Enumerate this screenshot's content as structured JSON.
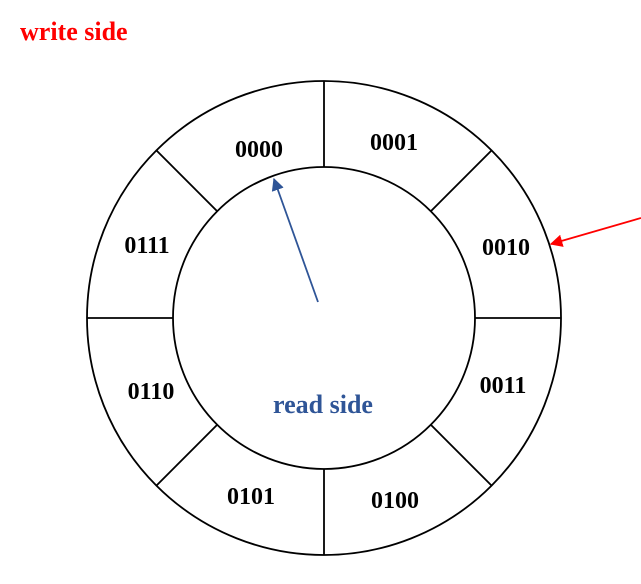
{
  "write_side_label": "write side",
  "read_side_label": "read side",
  "segments": [
    "0000",
    "0001",
    "0010",
    "0011",
    "0100",
    "0101",
    "0110",
    "0111"
  ],
  "colors": {
    "write": "#ff0000",
    "read": "#2f5597",
    "outline": "#000000"
  }
}
